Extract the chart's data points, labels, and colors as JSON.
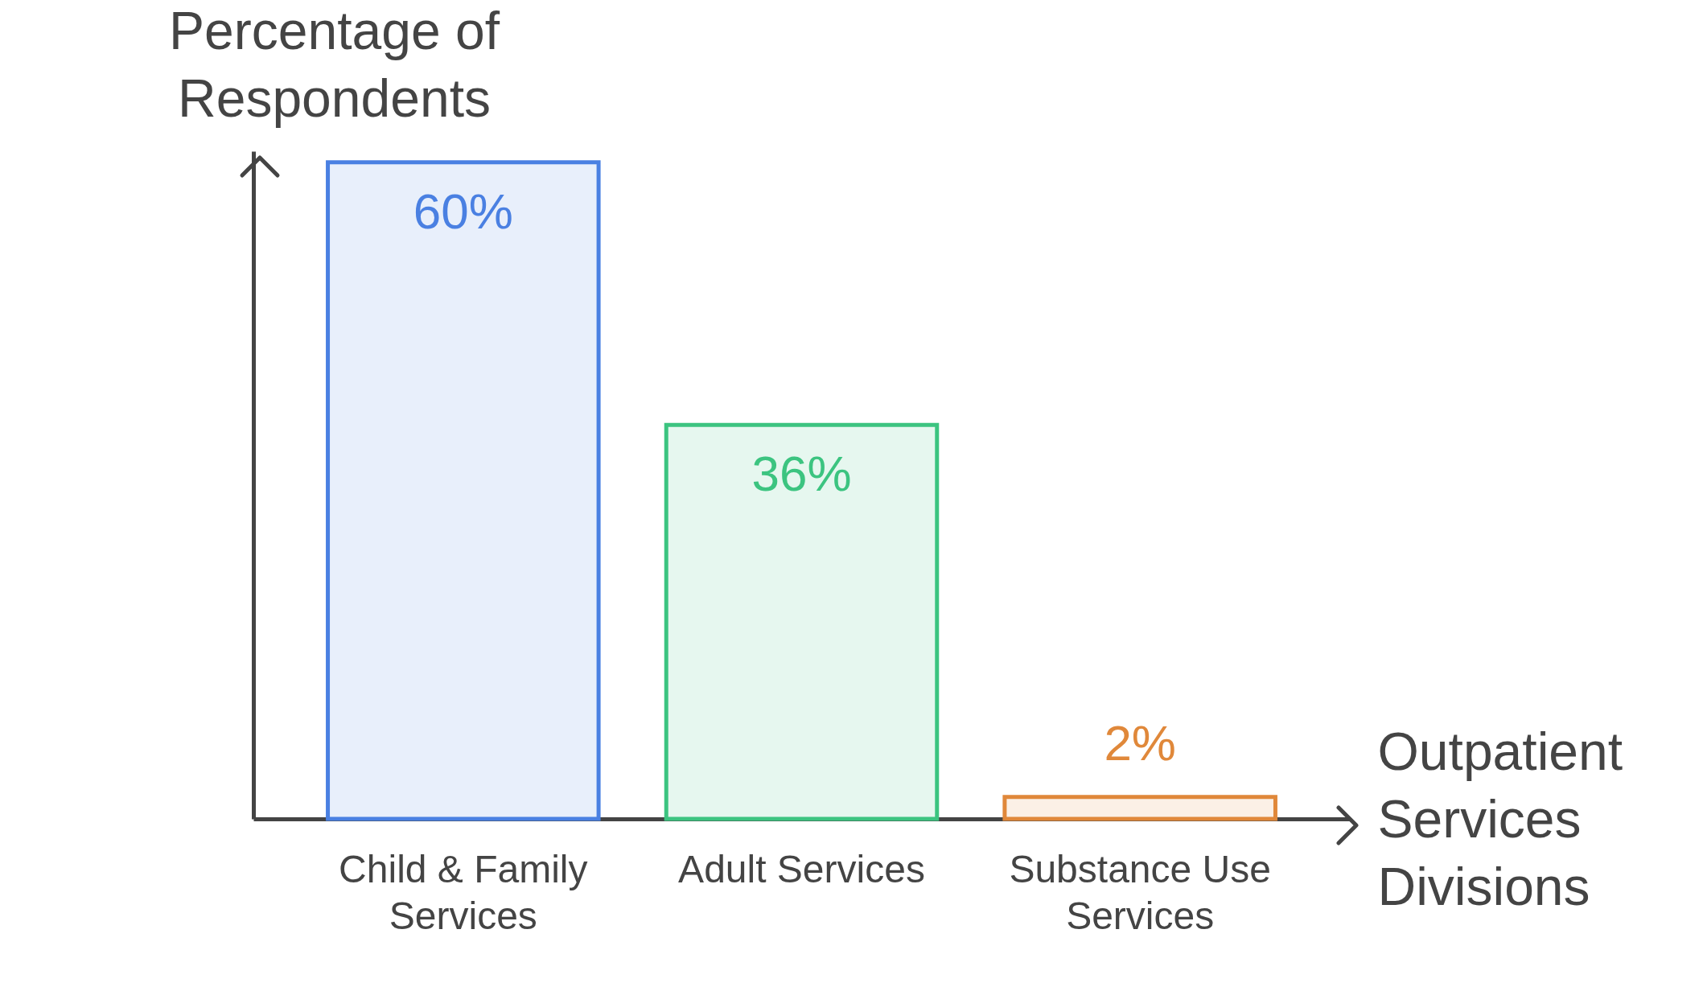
{
  "chart_data": {
    "type": "bar",
    "xlabel": "Outpatient Services Divisions",
    "ylabel": "Percentage of Respondents",
    "categories": [
      "Child & Family Services",
      "Adult Services",
      "Substance Use Services"
    ],
    "values": [
      60,
      36,
      2
    ],
    "colors": [
      "#4a80e2",
      "#3cc480",
      "#e0883a"
    ],
    "value_labels": [
      "60%",
      "36%",
      "2%"
    ]
  }
}
